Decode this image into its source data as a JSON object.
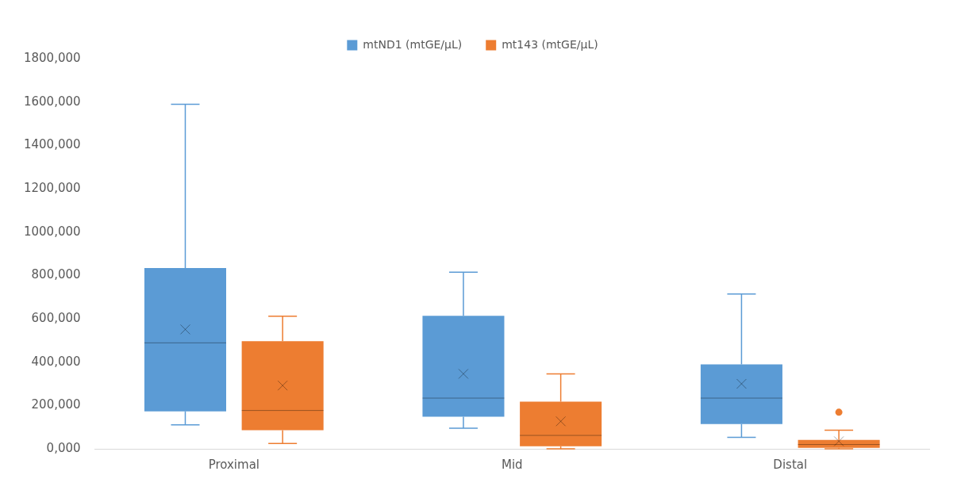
{
  "chart_data": {
    "type": "box",
    "categories": [
      "Proximal",
      "Mid",
      "Distal"
    ],
    "ylim": [
      0,
      1800000
    ],
    "yticks": [
      {
        "value": 0,
        "label": "0,000"
      },
      {
        "value": 200000,
        "label": "200,000"
      },
      {
        "value": 400000,
        "label": "400,000"
      },
      {
        "value": 600000,
        "label": "600,000"
      },
      {
        "value": 800000,
        "label": "800,000"
      },
      {
        "value": 1000000,
        "label": "1000,000"
      },
      {
        "value": 1200000,
        "label": "1200,000"
      },
      {
        "value": 1400000,
        "label": "1400,000"
      },
      {
        "value": 1600000,
        "label": "1600,000"
      },
      {
        "value": 1800000,
        "label": "1800,000"
      }
    ],
    "grid": false,
    "legend": "top",
    "series": [
      {
        "name": "mtND1 (mtGE/µL)",
        "color": "#5b9bd5",
        "boxes": [
          {
            "low": 111000,
            "q1": 173000,
            "median": 489000,
            "q3": 834000,
            "high": 1590000,
            "mean": 551000
          },
          {
            "low": 95000,
            "q1": 148000,
            "median": 234000,
            "q3": 614000,
            "high": 815000,
            "mean": 346000
          },
          {
            "low": 53000,
            "q1": 114000,
            "median": 234000,
            "q3": 390000,
            "high": 714000,
            "mean": 300000
          }
        ]
      },
      {
        "name": "mt143 (mtGE/µL)",
        "color": "#ed7d31",
        "boxes": [
          {
            "low": 25000,
            "q1": 86000,
            "median": 177000,
            "q3": 497000,
            "high": 612000,
            "mean": 292000
          },
          {
            "low": 0,
            "q1": 12000,
            "median": 62000,
            "q3": 218000,
            "high": 346000,
            "mean": 127000
          },
          {
            "low": 0,
            "q1": 5000,
            "median": 20000,
            "q3": 41000,
            "high": 86000,
            "mean": 35000,
            "outliers": [
              169000
            ]
          }
        ]
      }
    ]
  }
}
